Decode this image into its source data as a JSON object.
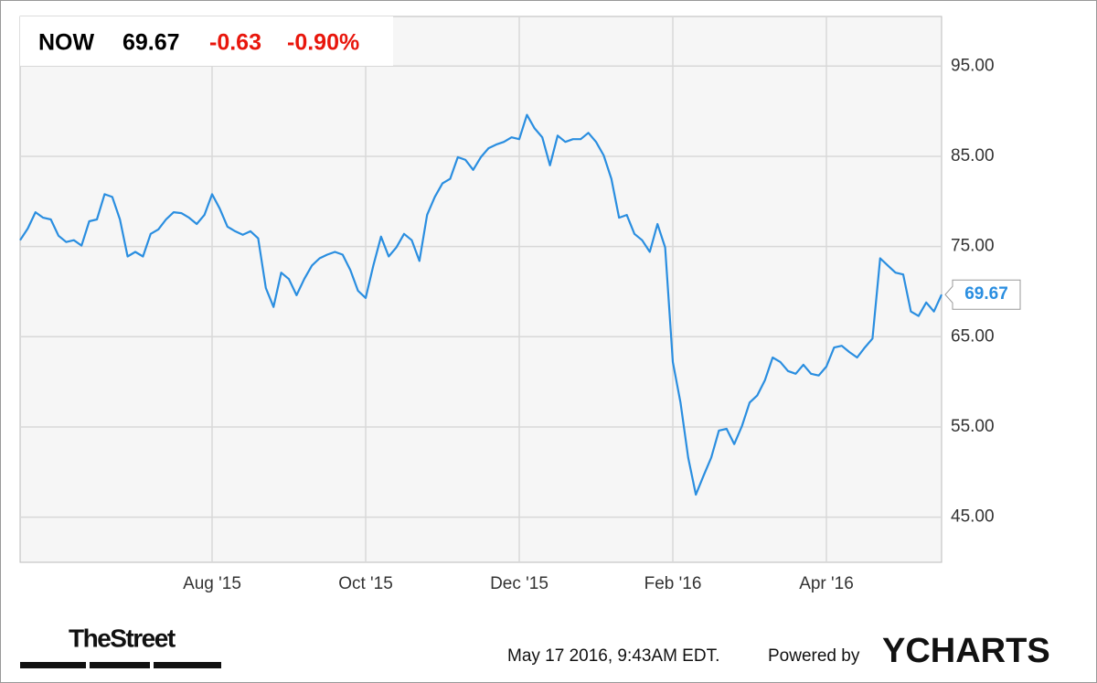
{
  "header": {
    "ticker": "NOW",
    "price": "69.67",
    "change": "-0.63",
    "change_pct": "-0.90%"
  },
  "footer": {
    "brand": "TheStreet",
    "timestamp": "May 17 2016, 9:43AM EDT.",
    "powered": "Powered by",
    "provider": "YCHARTS"
  },
  "chart_data": {
    "type": "line",
    "categories": [
      null,
      null,
      null,
      null,
      null,
      null,
      null,
      null,
      null,
      null,
      null,
      null,
      null,
      null,
      null,
      null,
      null,
      null,
      null,
      null,
      null,
      null,
      null,
      null,
      null,
      "Aug '15",
      null,
      null,
      null,
      null,
      null,
      null,
      null,
      null,
      null,
      null,
      null,
      null,
      null,
      null,
      null,
      null,
      null,
      null,
      null,
      "Oct '15",
      null,
      null,
      null,
      null,
      null,
      null,
      null,
      null,
      null,
      null,
      null,
      null,
      null,
      null,
      null,
      null,
      null,
      null,
      null,
      "Dec '15",
      null,
      null,
      null,
      null,
      null,
      null,
      null,
      null,
      null,
      null,
      null,
      null,
      null,
      null,
      null,
      null,
      null,
      null,
      null,
      "Feb '16",
      null,
      null,
      null,
      null,
      null,
      null,
      null,
      null,
      null,
      null,
      null,
      null,
      null,
      null,
      null,
      null,
      null,
      null,
      null,
      "Apr '16",
      null,
      null,
      null,
      null,
      null,
      null,
      null,
      null,
      null,
      null,
      null,
      null,
      null,
      null,
      null
    ],
    "series": [
      {
        "name": "NOW",
        "color": "#2a8ee0",
        "values": [
          75.7,
          77,
          78.8,
          78.2,
          78,
          76.2,
          75.5,
          75.7,
          75.1,
          77.8,
          78,
          80.8,
          80.5,
          78,
          73.9,
          74.4,
          73.9,
          76.4,
          76.9,
          78,
          78.8,
          78.7,
          78.2,
          77.5,
          78.5,
          80.8,
          79.2,
          77.2,
          76.7,
          76.3,
          76.7,
          75.9,
          70.4,
          68.3,
          72.1,
          71.4,
          69.6,
          71.4,
          72.9,
          73.7,
          74.1,
          74.4,
          74.1,
          72.4,
          70.1,
          69.3,
          72.9,
          76.1,
          73.9,
          74.9,
          76.4,
          75.7,
          73.4,
          78.5,
          80.5,
          82,
          82.5,
          84.9,
          84.6,
          83.5,
          84.9,
          85.9,
          86.3,
          86.6,
          87.1,
          86.9,
          89.6,
          88.1,
          87.1,
          84,
          87.3,
          86.6,
          86.9,
          86.9,
          87.6,
          86.6,
          85.1,
          82.5,
          78.2,
          78.5,
          76.4,
          75.7,
          74.4,
          77.5,
          74.9,
          62.2,
          57.7,
          51.6,
          47.5,
          49.6,
          51.6,
          54.6,
          54.8,
          53.1,
          55.1,
          57.7,
          58.5,
          60.2,
          62.7,
          62.2,
          61.2,
          60.9,
          61.9,
          60.9,
          60.7,
          61.7,
          63.8,
          64,
          63.3,
          62.7,
          63.8,
          64.8,
          73.7,
          72.9,
          72.1,
          71.9,
          67.8,
          67.3,
          68.8,
          67.8,
          69.67
        ]
      }
    ],
    "ylim": [
      40,
      100.5
    ],
    "yticks": [
      {
        "value": 45,
        "label": "45.00"
      },
      {
        "value": 55,
        "label": "55.00"
      },
      {
        "value": 65,
        "label": "65.00"
      },
      {
        "value": 75,
        "label": "75.00"
      },
      {
        "value": 85,
        "label": "85.00"
      },
      {
        "value": 95,
        "label": "95.00"
      }
    ],
    "grid": true
  }
}
